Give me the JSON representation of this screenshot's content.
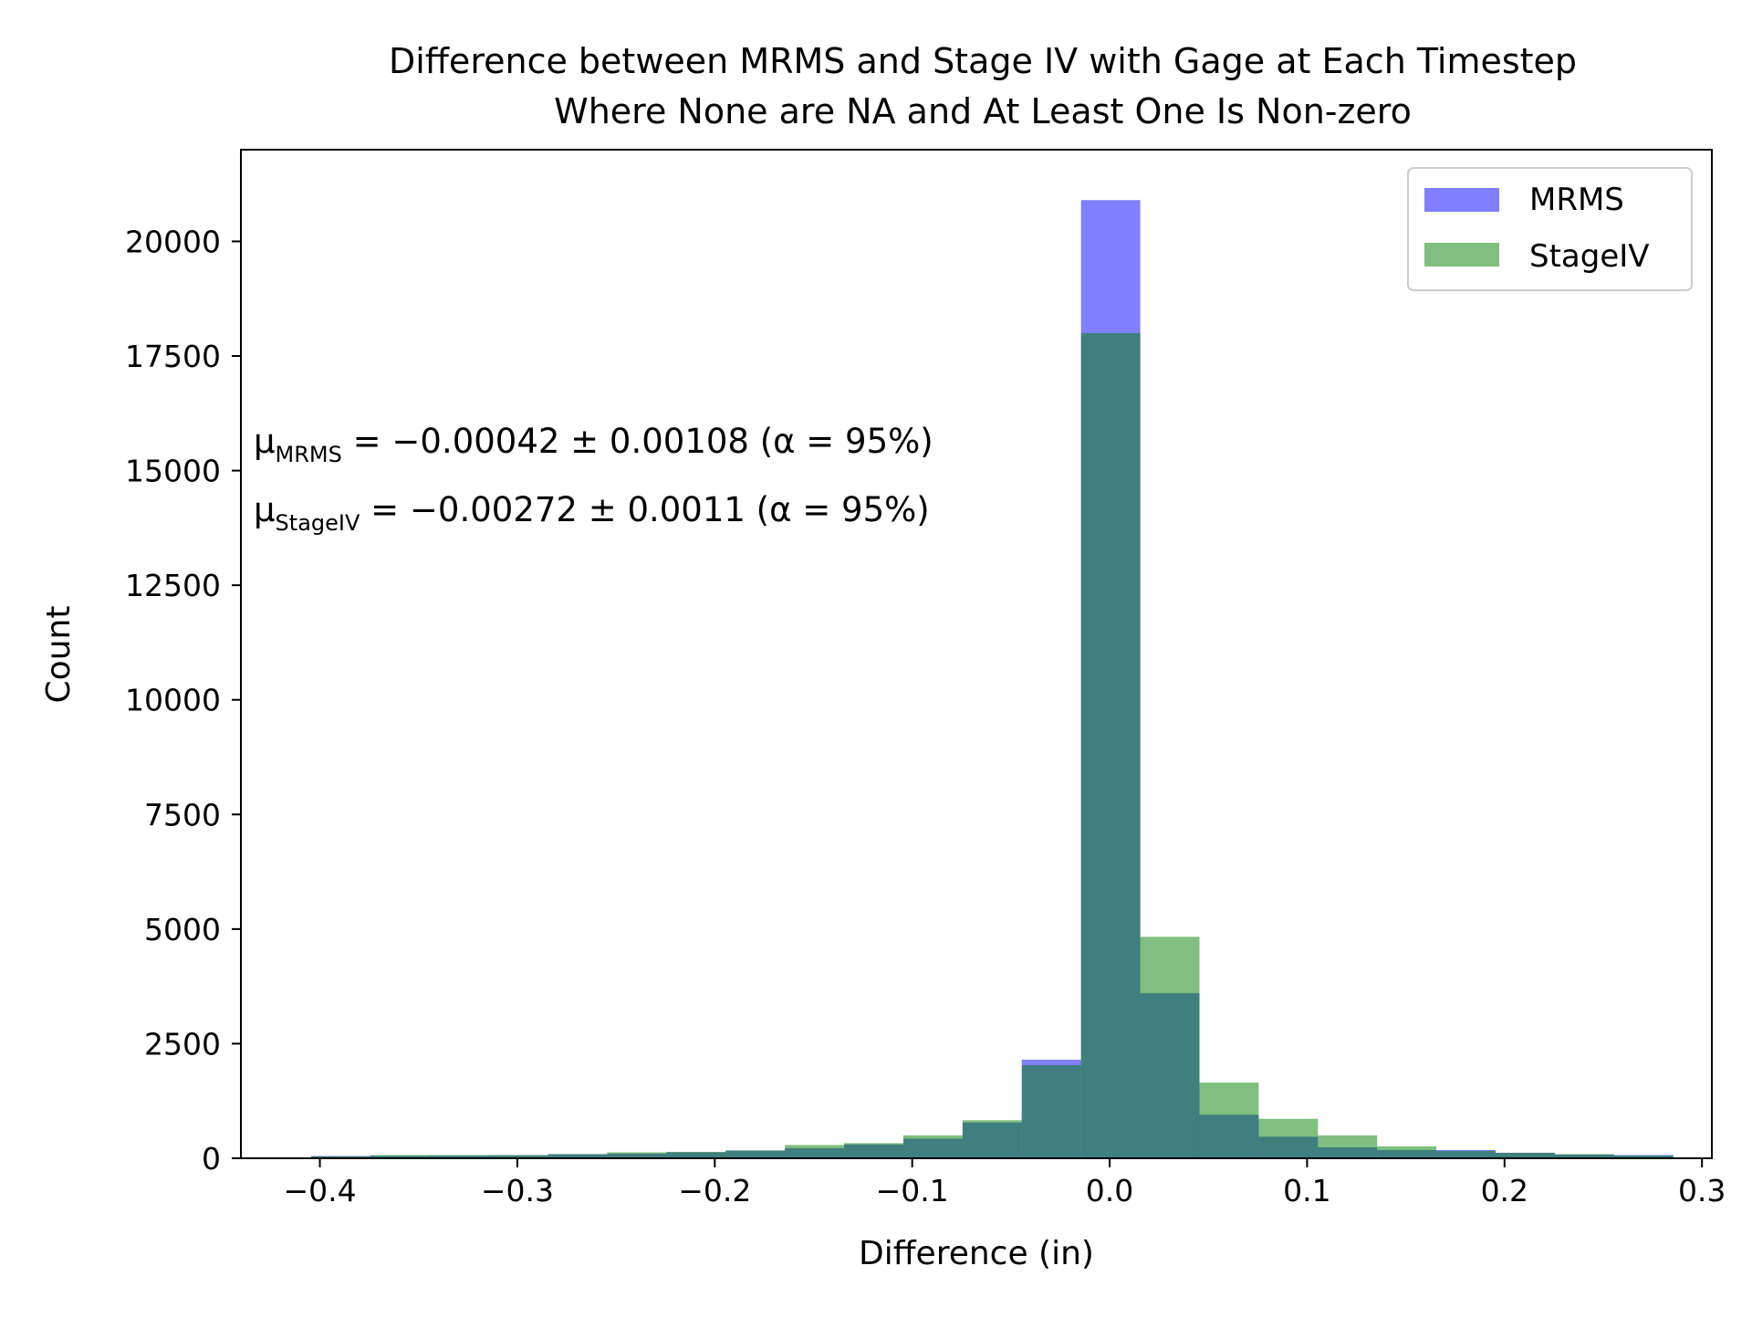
{
  "chart_data": {
    "type": "bar",
    "title": "Difference between MRMS and Stage IV with Gage at Each Timestep\nWhere None are NA and At Least One Is Non-zero",
    "title_lines": [
      "Difference between MRMS and Stage IV with Gage at Each Timestep",
      "Where None are NA and At Least One Is Non-zero"
    ],
    "xlabel": "Difference (in)",
    "ylabel": "Count",
    "xlim": [
      -0.44,
      0.305
    ],
    "ylim": [
      0,
      22000
    ],
    "xticks": [
      -0.4,
      -0.3,
      -0.2,
      -0.1,
      0.0,
      0.1,
      0.2,
      0.3
    ],
    "xtick_labels": [
      "−0.4",
      "−0.3",
      "−0.2",
      "−0.1",
      "0.0",
      "0.1",
      "0.2",
      "0.3"
    ],
    "yticks": [
      0,
      2500,
      5000,
      7500,
      10000,
      12500,
      15000,
      17500,
      20000
    ],
    "ytick_labels": [
      "0",
      "2500",
      "5000",
      "7500",
      "10000",
      "12500",
      "15000",
      "17500",
      "20000"
    ],
    "legend_position": "top-right",
    "grid": false,
    "bins": [
      {
        "x0": -0.4045,
        "x1": -0.3745,
        "mrms": 50,
        "stage": 40
      },
      {
        "x0": -0.3745,
        "x1": -0.3445,
        "mrms": 55,
        "stage": 70
      },
      {
        "x0": -0.3445,
        "x1": -0.3145,
        "mrms": 60,
        "stage": 70
      },
      {
        "x0": -0.3145,
        "x1": -0.2845,
        "mrms": 65,
        "stage": 70
      },
      {
        "x0": -0.2845,
        "x1": -0.2545,
        "mrms": 90,
        "stage": 90
      },
      {
        "x0": -0.2545,
        "x1": -0.2245,
        "mrms": 100,
        "stage": 130
      },
      {
        "x0": -0.2245,
        "x1": -0.1945,
        "mrms": 130,
        "stage": 140
      },
      {
        "x0": -0.1945,
        "x1": -0.1645,
        "mrms": 170,
        "stage": 170
      },
      {
        "x0": -0.1645,
        "x1": -0.1345,
        "mrms": 220,
        "stage": 290
      },
      {
        "x0": -0.1345,
        "x1": -0.1045,
        "mrms": 300,
        "stage": 330
      },
      {
        "x0": -0.1045,
        "x1": -0.0745,
        "mrms": 430,
        "stage": 500
      },
      {
        "x0": -0.0745,
        "x1": -0.0445,
        "mrms": 780,
        "stage": 830
      },
      {
        "x0": -0.0445,
        "x1": -0.0145,
        "mrms": 2150,
        "stage": 2030
      },
      {
        "x0": -0.0145,
        "x1": 0.0155,
        "mrms": 20900,
        "stage": 18000
      },
      {
        "x0": 0.0155,
        "x1": 0.0455,
        "mrms": 3600,
        "stage": 4830
      },
      {
        "x0": 0.0455,
        "x1": 0.0755,
        "mrms": 950,
        "stage": 1650
      },
      {
        "x0": 0.0755,
        "x1": 0.1055,
        "mrms": 470,
        "stage": 860
      },
      {
        "x0": 0.1055,
        "x1": 0.1355,
        "mrms": 240,
        "stage": 500
      },
      {
        "x0": 0.1355,
        "x1": 0.1655,
        "mrms": 180,
        "stage": 260
      },
      {
        "x0": 0.1655,
        "x1": 0.1955,
        "mrms": 180,
        "stage": 160
      },
      {
        "x0": 0.1955,
        "x1": 0.2255,
        "mrms": 120,
        "stage": 120
      },
      {
        "x0": 0.2255,
        "x1": 0.2555,
        "mrms": 80,
        "stage": 90
      },
      {
        "x0": 0.2555,
        "x1": 0.2855,
        "mrms": 70,
        "stage": 60
      }
    ],
    "series": [
      {
        "name": "MRMS",
        "color": "#0000ff",
        "alpha": 0.5
      },
      {
        "name": "StageIV",
        "color": "#008000",
        "alpha": 0.5
      }
    ],
    "annotations": [
      {
        "main": "μ",
        "sub": "MRMS",
        "rest": " = −0.00042 ± 0.00108 (α = 95%)"
      },
      {
        "main": "μ",
        "sub": "StageIV",
        "rest": " = −0.00272 ± 0.0011 (α = 95%)"
      }
    ]
  }
}
